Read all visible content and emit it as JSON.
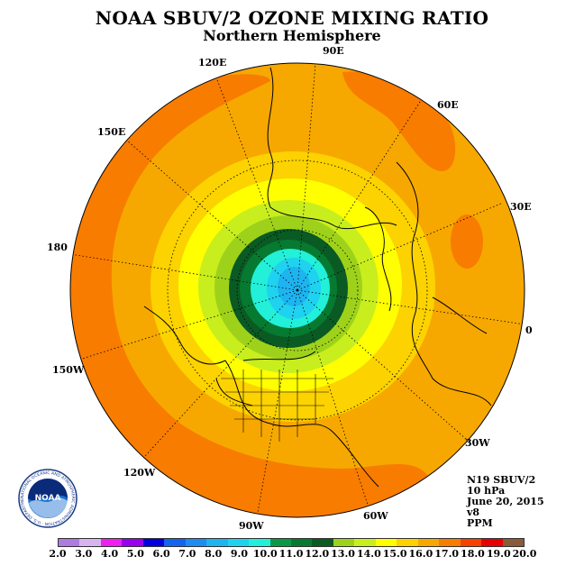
{
  "header": {
    "title": "NOAA SBUV/2 OZONE MIXING RATIO",
    "subtitle": "Northern Hemisphere"
  },
  "map": {
    "projection": "north-polar-stereographic",
    "longitude_labels": [
      "90E",
      "60E",
      "30E",
      "0",
      "30W",
      "60W",
      "90W",
      "120W",
      "150W",
      "180",
      "150E",
      "120E"
    ],
    "field_levels_ppm": {
      "pole_cap": 9.5,
      "inner_ring": 11.5,
      "ring_13": 13.0,
      "ring_14": 14.0,
      "ring_15": 15.0,
      "ring_16": 16.0,
      "outer_max": 17.5
    }
  },
  "info": {
    "satellite": "N19 SBUV/2",
    "pressure": "10 hPa",
    "date": "June 20, 2015",
    "version": "v8",
    "units": "PPM"
  },
  "colorbar": {
    "colors": [
      "#b07be0",
      "#d9b3f0",
      "#f01ef0",
      "#9a00f0",
      "#0000e0",
      "#1464f0",
      "#1e8cf0",
      "#1eb4f0",
      "#1ed2f0",
      "#22f0d8",
      "#0a9a46",
      "#067a30",
      "#0a5a24",
      "#9ed21a",
      "#c8ee1e",
      "#ffff00",
      "#fcd200",
      "#f6a800",
      "#f87c00",
      "#f84000",
      "#e80000",
      "#8a5a3a"
    ],
    "tick_labels": [
      "2.0",
      "3.0",
      "4.0",
      "5.0",
      "6.0",
      "7.0",
      "8.0",
      "9.0",
      "10.0",
      "11.0",
      "12.0",
      "13.0",
      "14.0",
      "15.0",
      "16.0",
      "17.0",
      "18.0",
      "19.0",
      "20.0"
    ]
  },
  "logo": {
    "text": "NOAA",
    "ring_text": "NATIONAL OCEANIC AND ATMOSPHERIC ADMINISTRATION · U.S. DEPARTMENT OF COMMERCE",
    "icon": "noaa-logo"
  }
}
